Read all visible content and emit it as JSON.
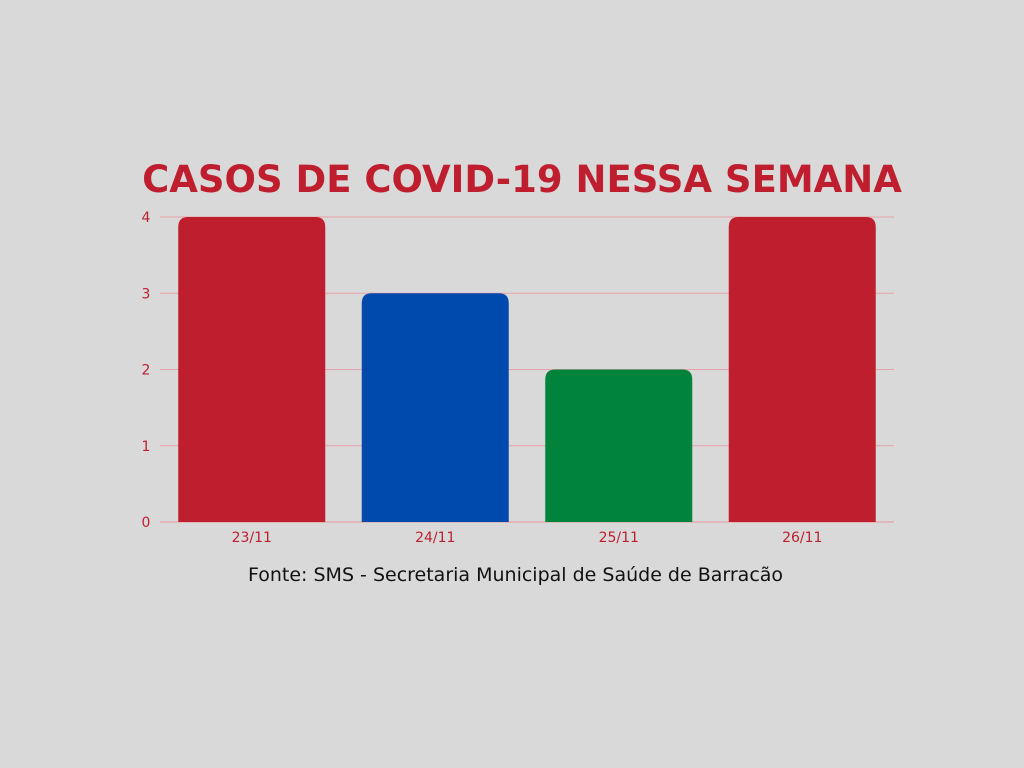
{
  "chart_data": {
    "type": "bar",
    "title": "CASOS DE COVID-19 NESSA SEMANA",
    "categories": [
      "23/11",
      "24/11",
      "25/11",
      "26/11"
    ],
    "values": [
      4,
      3,
      2,
      4
    ],
    "bar_colors": [
      "#bf1e2e",
      "#004aad",
      "#00833a",
      "#bf1e2e"
    ],
    "ylim": [
      0,
      4
    ],
    "yticks": [
      "0",
      "1",
      "2",
      "3",
      "4"
    ],
    "xlabel": "",
    "ylabel": "",
    "grid": true,
    "legend": "none"
  },
  "source": "Fonte: SMS - Secretaria Municipal de Saúde de Barracão",
  "colors": {
    "background": "#d9d9d9",
    "title": "#bf1e2e",
    "axis_text": "#bf1e2e",
    "gridline": "#e6a3a8"
  }
}
